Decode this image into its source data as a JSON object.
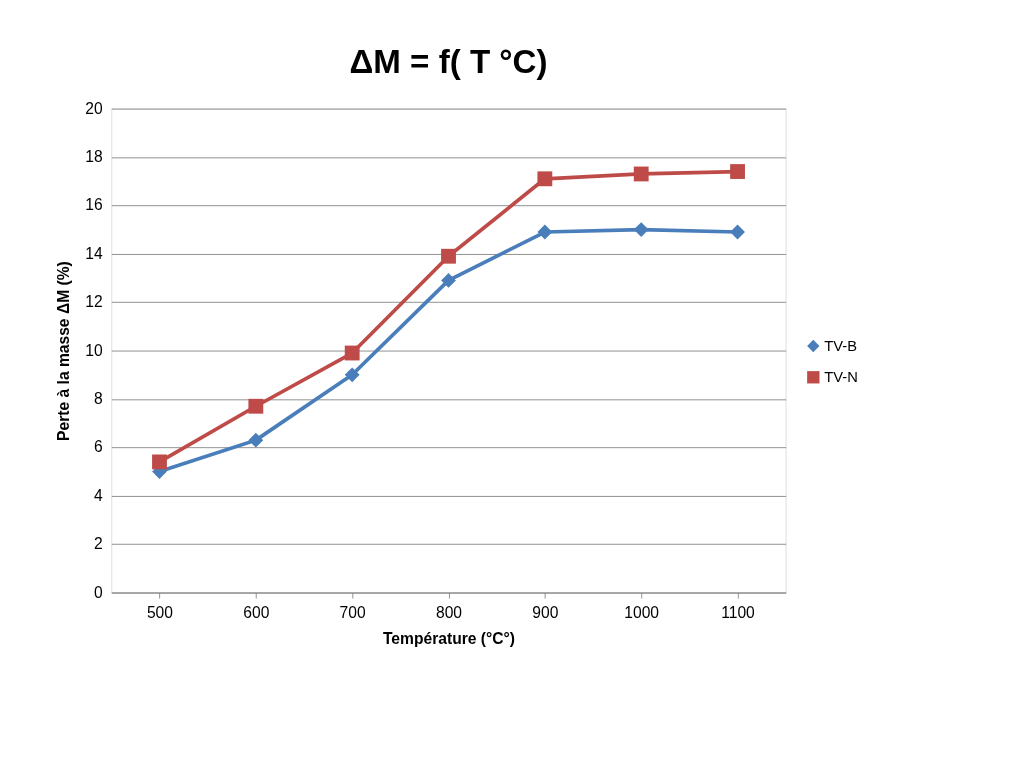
{
  "chart_data": {
    "type": "line",
    "title": "ΔM = f( T °C)",
    "xlabel": "Température (°C°)",
    "ylabel": "Perte à  la masse  ΔM (%)",
    "categories": [
      "500",
      "600",
      "700",
      "800",
      "900",
      "1000",
      "1100"
    ],
    "series": [
      {
        "name": "TV-B",
        "color": "#4a7ebb",
        "marker": "diamond",
        "values": [
          5.0,
          6.3,
          9.0,
          12.9,
          14.9,
          15.0,
          14.9
        ]
      },
      {
        "name": "TV-N",
        "color": "#be4b48",
        "marker": "square",
        "values": [
          5.4,
          7.7,
          9.9,
          13.9,
          17.1,
          17.3,
          17.4
        ]
      }
    ],
    "ylim": [
      0,
      20
    ],
    "yticks": [
      0,
      2,
      4,
      6,
      8,
      10,
      12,
      14,
      16,
      18,
      20
    ],
    "grid": "y",
    "legend": "right",
    "line_style": "solid"
  }
}
